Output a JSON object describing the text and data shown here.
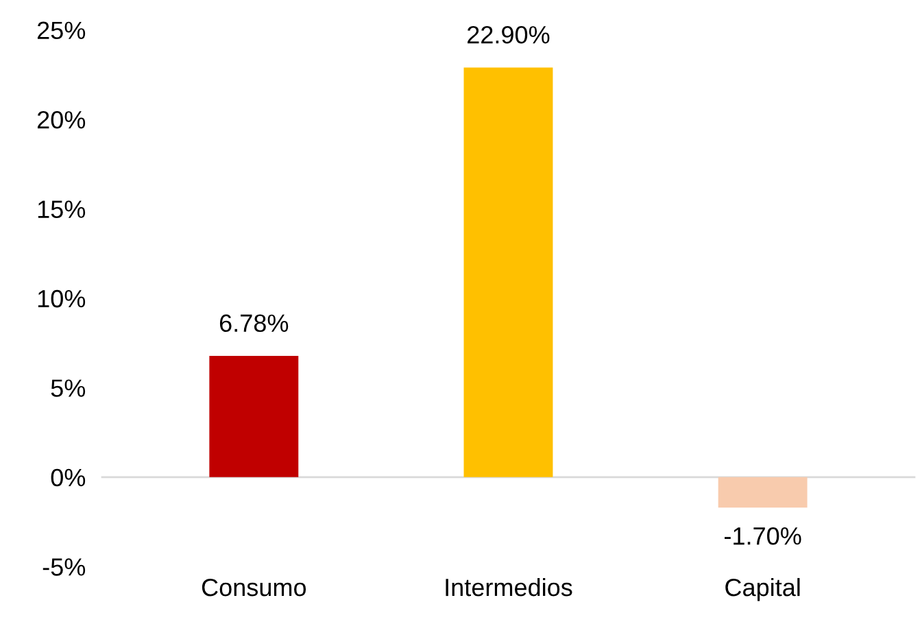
{
  "chart_data": {
    "type": "bar",
    "categories": [
      "Consumo",
      "Intermedios",
      "Capital"
    ],
    "values": [
      6.78,
      22.9,
      -1.7
    ],
    "colors": [
      "#c00000",
      "#ffc000",
      "#f8cbad"
    ],
    "value_labels": [
      "6.78%",
      "22.90%",
      "-1.70%"
    ],
    "ylim": [
      -5,
      25
    ],
    "yticks": [
      {
        "value": -5,
        "label": "-5%"
      },
      {
        "value": 0,
        "label": "0%"
      },
      {
        "value": 5,
        "label": "5%"
      },
      {
        "value": 10,
        "label": "10%"
      },
      {
        "value": 15,
        "label": "15%"
      },
      {
        "value": 20,
        "label": "20%"
      },
      {
        "value": 25,
        "label": "25%"
      }
    ],
    "ref_lines": [
      {
        "axis": "y",
        "value": 0,
        "color": "#d9d9d9"
      }
    ],
    "grid": false,
    "legend": false
  }
}
